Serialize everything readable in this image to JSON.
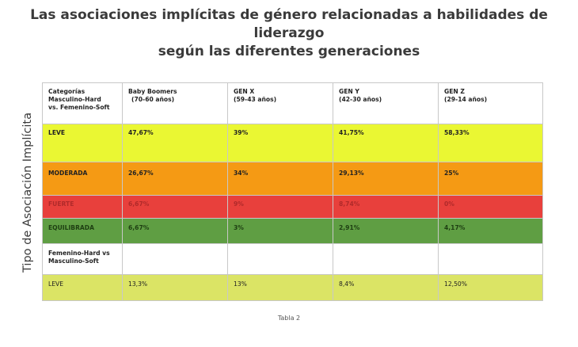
{
  "title": {
    "line1": "Las asociaciones implícitas de género relacionadas a habilidades de liderazgo",
    "line2": "según las diferentes generaciones"
  },
  "ylabel": "Tipo de Asociación Implícita",
  "table": {
    "header": {
      "col0": [
        "Categorías",
        "Masculino-Hard",
        "vs. Femenino-Soft"
      ],
      "col1": [
        "Baby Boomers",
        "(70-60 años)"
      ],
      "col2": [
        "GEN X",
        "(59-43 años)"
      ],
      "col3": [
        "GEN Y",
        "(42-30 años)"
      ],
      "col4": [
        "GEN Z",
        "(29-14 años)"
      ]
    },
    "rows": [
      {
        "label": "LEVE",
        "values": [
          "47,67%",
          "39%",
          "41,75%",
          "58,33%"
        ],
        "color": "#eaf733"
      },
      {
        "label": "MODERADA",
        "values": [
          "26,67%",
          "34%",
          "29,13%",
          "25%"
        ],
        "color": "#f59a14"
      },
      {
        "label": "FUERTE",
        "values": [
          "6,67%",
          "9%",
          "8,74%",
          "0%"
        ],
        "color": "#e8403c"
      },
      {
        "label": "EQUILIBRADA",
        "values": [
          "6,67%",
          "3%",
          "2,91%",
          "4,17%"
        ],
        "color": "#5f9e43"
      }
    ],
    "section2": {
      "label": [
        "Femenino-Hard vs",
        "Masculino-Soft"
      ]
    },
    "row2": {
      "label": "LEVE",
      "values": [
        "13,3%",
        "13%",
        "8,4%",
        "12,50%"
      ],
      "color": "#dbe465"
    }
  },
  "caption": "Tabla 2"
}
